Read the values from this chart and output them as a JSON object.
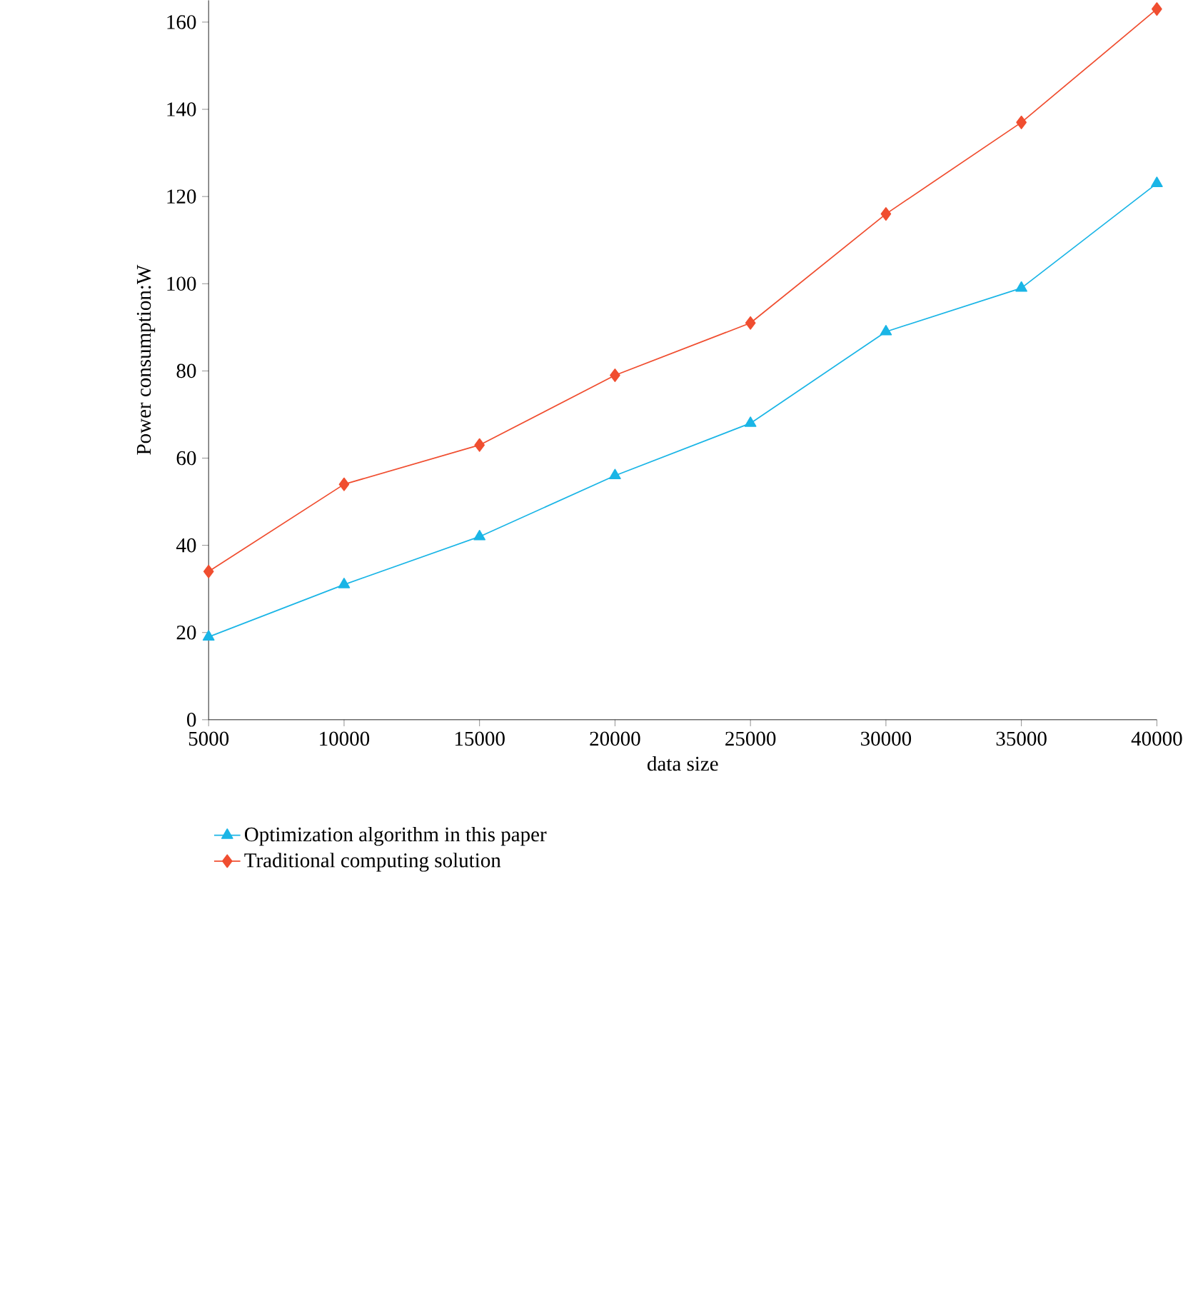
{
  "chart_data": {
    "type": "line",
    "xlabel": "data size",
    "ylabel": "Power consumption:W",
    "x": [
      5000,
      10000,
      15000,
      20000,
      25000,
      30000,
      35000,
      40000
    ],
    "series": [
      {
        "name": "Optimization algorithm in this paper",
        "color": "#1ab5e6",
        "marker": "triangle",
        "values": [
          19,
          31,
          42,
          56,
          68,
          89,
          99,
          123
        ]
      },
      {
        "name": "Traditional computing solution",
        "color": "#f04e30",
        "marker": "diamond",
        "values": [
          34,
          54,
          63,
          79,
          91,
          116,
          137,
          163
        ]
      }
    ],
    "xlim": [
      5000,
      40000
    ],
    "xticks": [
      5000,
      10000,
      15000,
      20000,
      25000,
      30000,
      35000,
      40000
    ],
    "ylim": [
      0,
      165
    ],
    "yticks": [
      0,
      20,
      40,
      60,
      80,
      100,
      120,
      140,
      160
    ],
    "grid": false,
    "legend": "bottom left",
    "line_style": "solid"
  }
}
